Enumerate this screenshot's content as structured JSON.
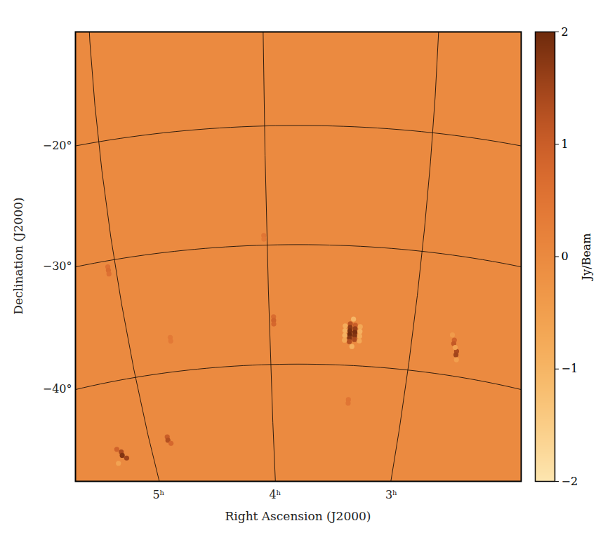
{
  "chart_data": {
    "type": "heatmap",
    "xlabel": "Right Ascension (J2000)",
    "ylabel": "Declination (J2000)",
    "xticks": [
      {
        "value": 5,
        "label": "5ʰ"
      },
      {
        "value": 4,
        "label": "4ʰ"
      },
      {
        "value": 3,
        "label": "3ʰ"
      }
    ],
    "yticks": [
      {
        "value": -20,
        "label": "−20°"
      },
      {
        "value": -30,
        "label": "−30°"
      },
      {
        "value": -40,
        "label": "−40°"
      }
    ],
    "grid": true,
    "background": 0,
    "cells": [
      {
        "ra": 3.44,
        "dec": -36.5,
        "value": 1.2
      },
      {
        "ra": 3.44,
        "dec": -36.8,
        "value": 1.7
      },
      {
        "ra": 3.44,
        "dec": -37.1,
        "value": 1.9
      },
      {
        "ra": 3.44,
        "dec": -37.4,
        "value": 2.0
      },
      {
        "ra": 3.44,
        "dec": -37.7,
        "value": 1.8
      },
      {
        "ra": 3.44,
        "dec": -38.0,
        "value": 1.3
      },
      {
        "ra": 3.405,
        "dec": -36.6,
        "value": 1.0
      },
      {
        "ra": 3.405,
        "dec": -36.9,
        "value": 1.6
      },
      {
        "ra": 3.405,
        "dec": -37.2,
        "value": 1.9
      },
      {
        "ra": 3.405,
        "dec": -37.5,
        "value": 1.8
      },
      {
        "ra": 3.405,
        "dec": -37.8,
        "value": 1.4
      },
      {
        "ra": 3.475,
        "dec": -36.7,
        "value": -0.8
      },
      {
        "ra": 3.475,
        "dec": -37.1,
        "value": -0.9
      },
      {
        "ra": 3.475,
        "dec": -37.5,
        "value": -0.9
      },
      {
        "ra": 3.475,
        "dec": -37.9,
        "value": -0.7
      },
      {
        "ra": 3.37,
        "dec": -36.7,
        "value": -0.7
      },
      {
        "ra": 3.37,
        "dec": -37.1,
        "value": -0.9
      },
      {
        "ra": 3.37,
        "dec": -37.5,
        "value": -0.8
      },
      {
        "ra": 3.37,
        "dec": -37.9,
        "value": -0.7
      },
      {
        "ra": 3.42,
        "dec": -36.1,
        "value": -1.0
      },
      {
        "ra": 3.42,
        "dec": -38.4,
        "value": -0.9
      },
      {
        "ra": 2.7,
        "dec": -37.0,
        "value": 0.9
      },
      {
        "ra": 2.7,
        "dec": -37.3,
        "value": 1.1
      },
      {
        "ra": 2.67,
        "dec": -37.9,
        "value": 1.4
      },
      {
        "ra": 2.67,
        "dec": -38.2,
        "value": 1.5
      },
      {
        "ra": 2.685,
        "dec": -37.6,
        "value": -0.6
      },
      {
        "ra": 2.66,
        "dec": -38.6,
        "value": -0.5
      },
      {
        "ra": 2.72,
        "dec": -36.6,
        "value": -0.4
      },
      {
        "ra": 3.97,
        "dec": -36.0,
        "value": 0.7
      },
      {
        "ra": 3.97,
        "dec": -36.3,
        "value": 0.9
      },
      {
        "ra": 3.97,
        "dec": -36.6,
        "value": 0.8
      },
      {
        "ra": 5.25,
        "dec": -46.0,
        "value": 1.4
      },
      {
        "ra": 5.25,
        "dec": -46.3,
        "value": 1.8
      },
      {
        "ra": 5.22,
        "dec": -46.6,
        "value": 1.5
      },
      {
        "ra": 5.28,
        "dec": -45.7,
        "value": 0.9
      },
      {
        "ra": 5.3,
        "dec": -46.9,
        "value": -0.6
      },
      {
        "ra": 4.85,
        "dec": -45.4,
        "value": 1.0
      },
      {
        "ra": 4.85,
        "dec": -45.7,
        "value": 1.3
      },
      {
        "ra": 4.83,
        "dec": -46.0,
        "value": 0.8
      },
      {
        "ra": 5.05,
        "dec": -30.5,
        "value": 0.6
      },
      {
        "ra": 5.05,
        "dec": -30.8,
        "value": 0.7
      },
      {
        "ra": 5.05,
        "dec": -31.1,
        "value": 0.6
      },
      {
        "ra": 4.02,
        "dec": -29.2,
        "value": 0.5
      },
      {
        "ra": 4.02,
        "dec": -29.5,
        "value": 0.4
      },
      {
        "ra": 4.7,
        "dec": -37.1,
        "value": 0.4
      },
      {
        "ra": 4.7,
        "dec": -37.4,
        "value": 0.4
      },
      {
        "ra": 3.42,
        "dec": -42.9,
        "value": 0.5
      },
      {
        "ra": 3.42,
        "dec": -43.2,
        "value": 0.5
      }
    ],
    "colorbar": {
      "label": "Jy/Beam",
      "range": [
        -2,
        2
      ],
      "ticks": [
        {
          "value": -2,
          "label": "−2"
        },
        {
          "value": -1,
          "label": "−1"
        },
        0,
        1,
        2
      ]
    }
  }
}
